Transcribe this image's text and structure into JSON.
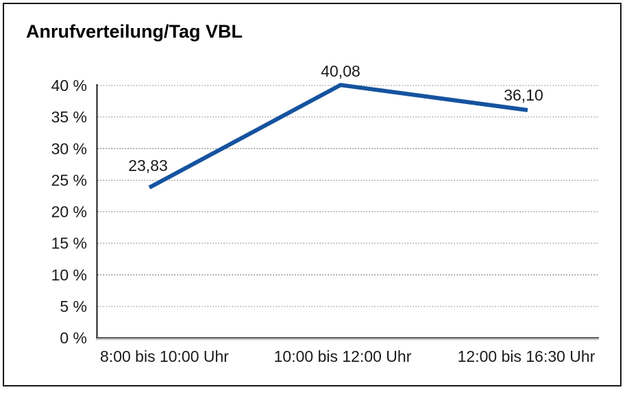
{
  "panel": {
    "background": "#ffffff",
    "border_color": "#161616"
  },
  "chart_data": {
    "type": "line",
    "title": "Anrufverteilung/Tag VBL",
    "categories": [
      "8:00 bis 10:00 Uhr",
      "10:00 bis 12:00 Uhr",
      "12:00 bis 16:30 Uhr"
    ],
    "values": [
      23.83,
      40.08,
      36.1
    ],
    "data_labels": [
      "23,83",
      "40,08",
      "36,10"
    ],
    "y_axis": {
      "tick_labels": [
        "0 %",
        "5 %",
        "10 %",
        "15 %",
        "20 %",
        "25 %",
        "30 %",
        "35 %",
        "40 %"
      ],
      "tick_values": [
        0,
        5,
        10,
        15,
        20,
        25,
        30,
        35,
        40
      ],
      "range": [
        0,
        40
      ],
      "unit": "%"
    },
    "xlabel": "",
    "ylabel": "",
    "grid": "horizontal dotted",
    "legend_position": "none",
    "line_color": "#15539F",
    "decimal_separator": ","
  }
}
